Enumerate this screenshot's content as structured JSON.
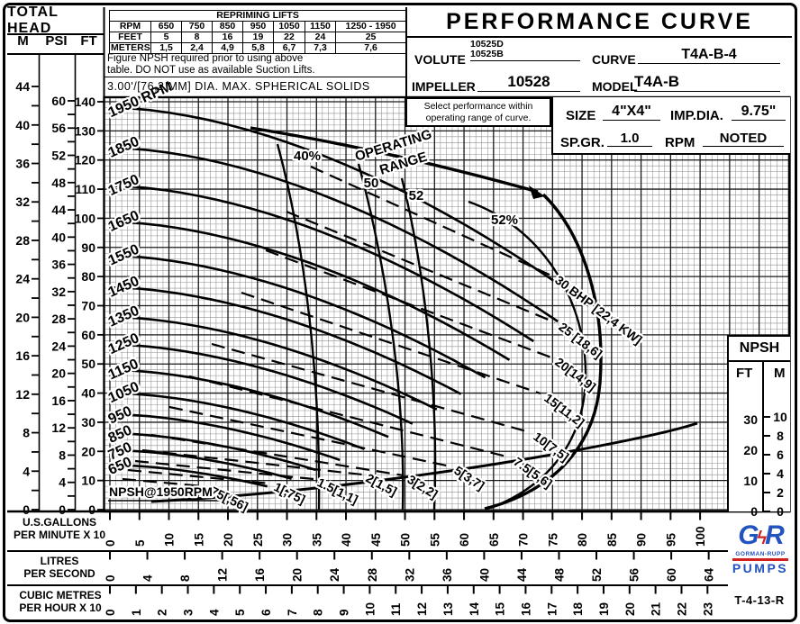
{
  "title": "PERFORMANCE CURVE",
  "doc_number": "T-4-13-R",
  "logo": {
    "g": "G",
    "bolt": "ϟ",
    "r": "R",
    "name": "GORMAN-RUPP",
    "word": "PUMPS",
    "blue": "#2353c0",
    "red": "#d02020"
  },
  "total_head": {
    "title": "TOTAL HEAD",
    "unit_m": "M",
    "unit_psi": "PSI",
    "unit_ft": "FT"
  },
  "repriming": {
    "title": "REPRIMING LIFTS",
    "row_rpm_label": "RPM",
    "row_feet_label": "FEET",
    "row_meters_label": "METERS",
    "rpm": [
      "650",
      "750",
      "850",
      "950",
      "1050",
      "1150",
      "1250 - 1950"
    ],
    "feet": [
      "5",
      "8",
      "16",
      "19",
      "22",
      "24",
      "25"
    ],
    "meters": [
      "1,5",
      "2,4",
      "4,9",
      "5,8",
      "6,7",
      "7,3",
      "7,6"
    ]
  },
  "notes": {
    "npsh_note_line1": "Figure NPSH required prior to using above",
    "npsh_note_line2": "table. DO NOT use as available Suction Lifts.",
    "solids_note": "3.00'/[76,2 MM] DIA. MAX. SPHERICAL SOLIDS"
  },
  "select_note": {
    "line1": "Select performance within",
    "line2": "operating range of curve."
  },
  "fields": {
    "volute_label": "VOLUTE",
    "volute_value1": "10525D",
    "volute_value2": "10525B",
    "curve_label": "CURVE",
    "curve_value": "T4A-B-4",
    "impeller_label": "IMPELLER",
    "impeller_value": "10528",
    "model_label": "MODEL",
    "model_value": "T4A-B",
    "size_label": "SIZE",
    "size_value": "4\"X4\"",
    "imp_dia_label": "IMP.DIA.",
    "imp_dia_value": "9.75\"",
    "sp_gr_label": "SP.GR.",
    "sp_gr_value": "1.0",
    "rpm_label": "RPM",
    "rpm_value": "NOTED"
  },
  "npsh_panel": {
    "title": "NPSH",
    "ft": "FT",
    "m": "M",
    "ft_ticks": [
      30,
      20,
      10,
      0
    ],
    "m_ticks": [
      10,
      8,
      6,
      4,
      2,
      0
    ]
  },
  "axes": {
    "gpm": {
      "line1": "U.S.GALLONS",
      "line2": "PER MINUTE X 10"
    },
    "lps": {
      "line1": "LITRES",
      "line2": "PER SECOND"
    },
    "m3h": {
      "line1": "CUBIC METRES",
      "line2": "PER HOUR X 10"
    }
  },
  "chart_data": {
    "type": "line",
    "title": "PERFORMANCE CURVE",
    "xlabel": "U.S. GALLONS PER MINUTE X 10",
    "ylabel": "TOTAL HEAD FT",
    "x_range_gpm_x10": [
      0,
      100
    ],
    "y_range_ft": [
      0,
      140
    ],
    "grid": true,
    "x_ticks_gpm": [
      0,
      5,
      10,
      15,
      20,
      25,
      30,
      35,
      40,
      45,
      50,
      55,
      60,
      65,
      70,
      75,
      80,
      85,
      90,
      95,
      100
    ],
    "x_ticks_lps": [
      0,
      4,
      8,
      12,
      16,
      20,
      24,
      28,
      32,
      36,
      40,
      44,
      48,
      52,
      56,
      60,
      64
    ],
    "x_ticks_m3h": [
      0,
      1,
      2,
      3,
      4,
      5,
      6,
      7,
      8,
      9,
      10,
      11,
      12,
      13,
      14,
      15,
      16,
      17,
      18,
      19,
      20,
      21,
      22,
      23
    ],
    "head_ticks": {
      "m": [
        0,
        4,
        8,
        12,
        16,
        20,
        24,
        28,
        32,
        36,
        40,
        44
      ],
      "psi": [
        0,
        4,
        8,
        12,
        16,
        20,
        24,
        28,
        32,
        36,
        40,
        44,
        48,
        52,
        56,
        60
      ],
      "ft": [
        0,
        10,
        20,
        30,
        40,
        50,
        60,
        70,
        80,
        90,
        100,
        110,
        120,
        130,
        140
      ]
    },
    "npsh_ticks": {
      "ft": [
        0,
        10,
        20,
        30
      ],
      "m": [
        0,
        2,
        4,
        6,
        8,
        10
      ]
    },
    "rpm_curves": {
      "labels": [
        "1950 RPM",
        "1850",
        "1750",
        "1650",
        "1550",
        "1450",
        "1350",
        "1250",
        "1150",
        "1050",
        "950",
        "850",
        "750",
        "650"
      ],
      "rpm_values": [
        1950,
        1850,
        1750,
        1650,
        1550,
        1450,
        1350,
        1250,
        1150,
        1050,
        950,
        850,
        750,
        650
      ],
      "shutoff_head_ft": [
        138,
        124,
        111,
        99,
        87,
        76,
        66,
        57,
        48,
        40,
        33,
        26,
        20,
        15
      ]
    },
    "bhp_lines": [
      ".75[,56]",
      "1[,75]",
      "1.5[1,1]",
      "2[1,5]",
      "3[2,2]",
      "5[3,7]",
      "7.5[5,6]",
      "10[7,5]",
      "15[11,2]",
      "20[14,9]",
      "25 [18,6]",
      "30 BHP [22,4 KW]"
    ],
    "bhp_values": [
      0.75,
      1,
      1.5,
      2,
      3,
      5,
      7.5,
      10,
      15,
      20,
      25,
      30
    ],
    "efficiency_labels": [
      "40%",
      "50",
      "52",
      "52%"
    ],
    "efficiency_values": [
      40,
      50,
      52,
      52
    ],
    "operating_range_label": [
      "OPERATING",
      "RANGE"
    ],
    "npsh_curve_label": "NPSH@1950RPM",
    "npsh_curve_points_est": [
      {
        "gpm_x10": 10,
        "npsh_ft": 2.5
      },
      {
        "gpm_x10": 30,
        "npsh_ft": 5
      },
      {
        "gpm_x10": 50,
        "npsh_ft": 10
      },
      {
        "gpm_x10": 70,
        "npsh_ft": 17
      },
      {
        "gpm_x10": 90,
        "npsh_ft": 24
      },
      {
        "gpm_x10": 100,
        "npsh_ft": 28
      }
    ]
  }
}
